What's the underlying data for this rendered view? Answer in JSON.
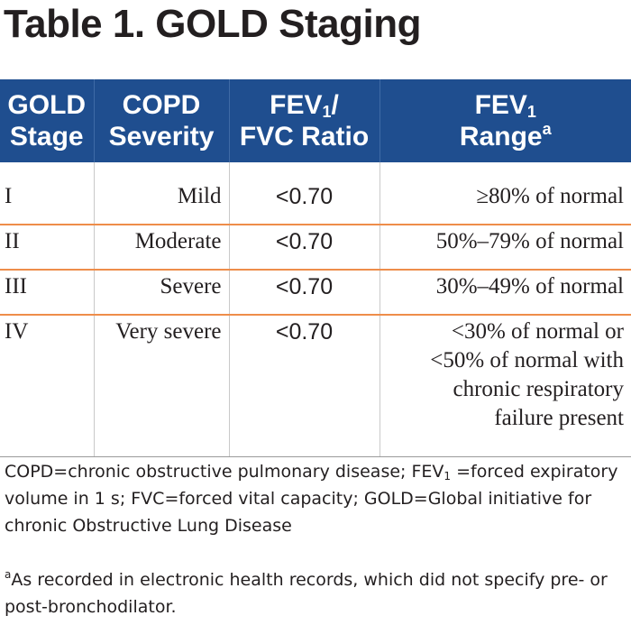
{
  "title": "Table 1. GOLD Staging",
  "headers": {
    "stage": [
      "GOLD",
      "Stage"
    ],
    "severity": [
      "COPD",
      "Severity"
    ],
    "ratio": {
      "line1_a": "FEV",
      "line1_sub": "1",
      "line1_b": "/",
      "line2": "FVC Ratio"
    },
    "range": {
      "line1_a": "FEV",
      "line1_sub": "1",
      "line2": "Range",
      "line2_sup": "a"
    }
  },
  "rows": [
    {
      "stage": "I",
      "severity": "Mild",
      "ratio": "<0.70",
      "range": [
        "≥80% of normal"
      ]
    },
    {
      "stage": "II",
      "severity": "Moderate",
      "ratio": "<0.70",
      "range": [
        "50%–79% of normal"
      ]
    },
    {
      "stage": "III",
      "severity": "Severe",
      "ratio": "<0.70",
      "range": [
        "30%–49% of normal"
      ]
    },
    {
      "stage": "IV",
      "severity": "Very severe",
      "ratio": "<0.70",
      "range": [
        "<30% of normal or",
        "<50% of normal with",
        "chronic respiratory",
        "failure present"
      ]
    }
  ],
  "abbreviations": {
    "part1": "COPD=chronic obstructive pulmonary disease; FEV",
    "sub": "1",
    "part2": " =forced expiratory volume in 1 s; FVC=forced vital capacity; GOLD=Global initiative for chronic Obstructive Lung Disease"
  },
  "footnote": {
    "marker": "a",
    "text": "As recorded in electronic health records, which did not specify pre- or post-bronchodilator."
  }
}
